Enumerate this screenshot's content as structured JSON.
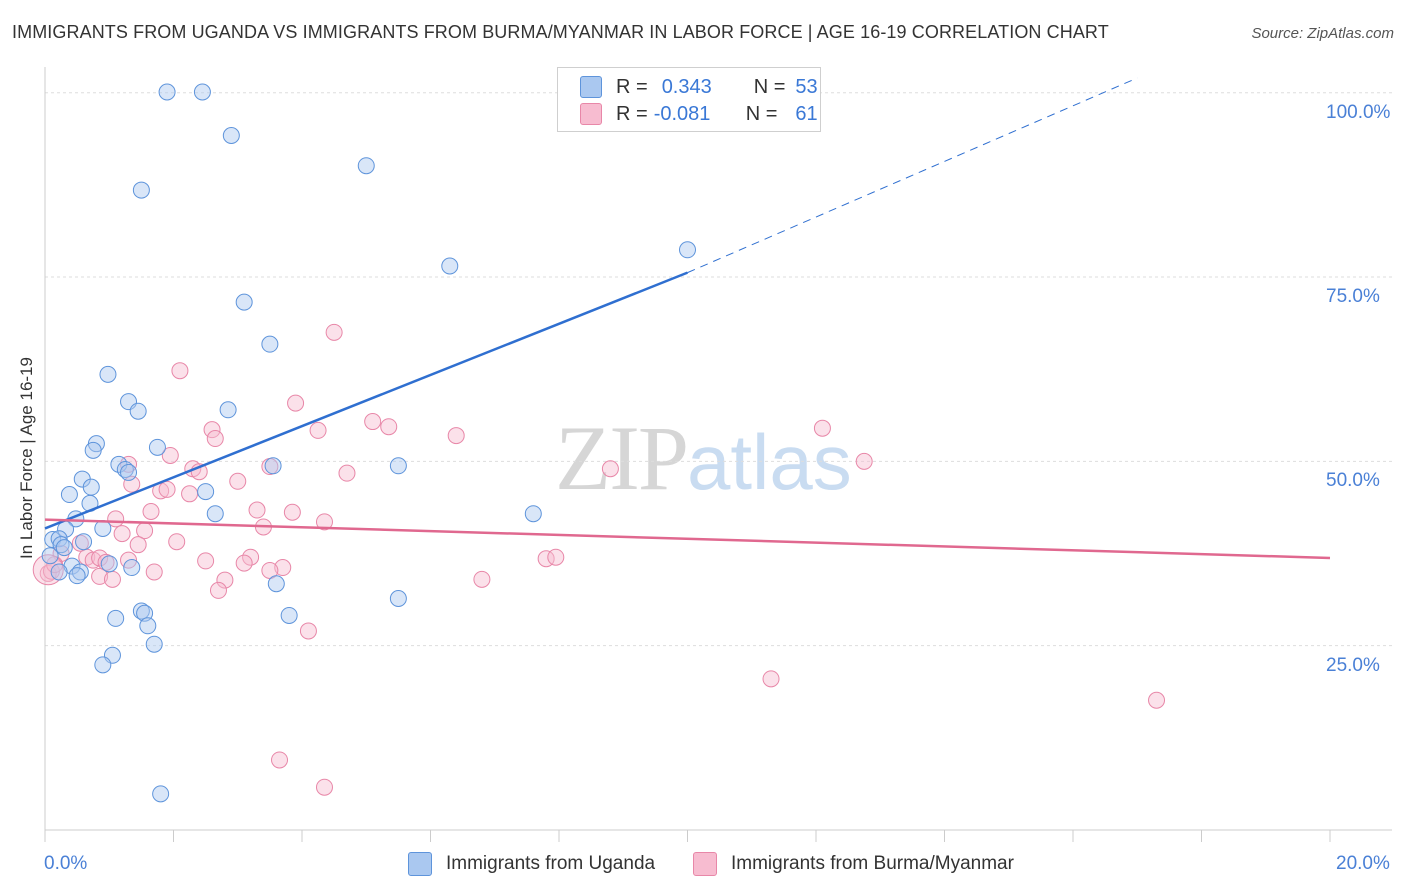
{
  "header": {
    "title": "IMMIGRANTS FROM UGANDA VS IMMIGRANTS FROM BURMA/MYANMAR IN LABOR FORCE | AGE 16-19 CORRELATION CHART",
    "source": "Source: ZipAtlas.com"
  },
  "watermark": {
    "zip": "ZIP",
    "atlas": "atlas"
  },
  "legend": {
    "rows": [
      {
        "r_label": "R =",
        "r_value": "0.343",
        "n_label": "N =",
        "n_value": "53",
        "color": "#aac8f0"
      },
      {
        "r_label": "R =",
        "r_value": "-0.081",
        "n_label": "N =",
        "n_value": "61",
        "color": "#f7bcd0"
      }
    ]
  },
  "colors": {
    "blue_fill": "#aac8f0",
    "blue_stroke": "#5e94db",
    "blue_line": "#2f6fd0",
    "pink_fill": "#f7bcd0",
    "pink_stroke": "#e887a8",
    "pink_line": "#e0688f",
    "tick_text": "#4a80d6",
    "grid": "#dddddd"
  },
  "chart_data": {
    "type": "scatter",
    "title": "IMMIGRANTS FROM UGANDA VS IMMIGRANTS FROM BURMA/MYANMAR IN LABOR FORCE | AGE 16-19 CORRELATION CHART",
    "xlabel": "",
    "ylabel": "In Labor Force | Age 16-19",
    "xlim": [
      0,
      20
    ],
    "ylim": [
      0,
      102
    ],
    "x_tick_labels": [
      "0.0%",
      "20.0%"
    ],
    "y_ticks": [
      25,
      50,
      75,
      100
    ],
    "y_tick_labels": [
      "25.0%",
      "50.0%",
      "75.0%",
      "100.0%"
    ],
    "grid": true,
    "legend_position": "top-center",
    "series": [
      {
        "name": "Immigrants from Uganda",
        "color": "#aac8f0",
        "trend": {
          "x_start": 0,
          "y_start": 40.9,
          "x_solid_end": 10.0,
          "y_solid_end": 75.6,
          "x_dash_end": 17.0,
          "y_dash_end": 102
        },
        "points": [
          [
            1.9,
            100.1
          ],
          [
            2.45,
            100.1
          ],
          [
            2.9,
            94.2
          ],
          [
            1.5,
            86.8
          ],
          [
            5.0,
            90.1
          ],
          [
            10.0,
            78.7
          ],
          [
            6.3,
            76.5
          ],
          [
            3.1,
            71.6
          ],
          [
            3.5,
            65.9
          ],
          [
            0.98,
            61.8
          ],
          [
            1.3,
            58.1
          ],
          [
            1.45,
            56.8
          ],
          [
            2.85,
            57.0
          ],
          [
            0.8,
            52.4
          ],
          [
            0.75,
            51.5
          ],
          [
            1.75,
            51.9
          ],
          [
            1.15,
            49.6
          ],
          [
            1.25,
            48.9
          ],
          [
            1.3,
            48.5
          ],
          [
            3.55,
            49.4
          ],
          [
            5.5,
            49.4
          ],
          [
            0.58,
            47.6
          ],
          [
            0.72,
            46.5
          ],
          [
            2.5,
            45.9
          ],
          [
            0.38,
            45.5
          ],
          [
            0.7,
            44.3
          ],
          [
            2.65,
            42.9
          ],
          [
            7.6,
            42.9
          ],
          [
            0.48,
            42.2
          ],
          [
            0.32,
            40.8
          ],
          [
            0.9,
            40.9
          ],
          [
            0.12,
            39.4
          ],
          [
            0.22,
            39.5
          ],
          [
            0.6,
            39.1
          ],
          [
            0.25,
            38.7
          ],
          [
            0.3,
            38.3
          ],
          [
            0.08,
            37.2
          ],
          [
            0.42,
            35.8
          ],
          [
            1.0,
            36.1
          ],
          [
            0.55,
            35.0
          ],
          [
            1.35,
            35.6
          ],
          [
            0.5,
            34.5
          ],
          [
            0.22,
            35.0
          ],
          [
            3.6,
            33.4
          ],
          [
            5.5,
            31.4
          ],
          [
            1.5,
            29.7
          ],
          [
            1.55,
            29.4
          ],
          [
            1.1,
            28.7
          ],
          [
            3.8,
            29.1
          ],
          [
            1.6,
            27.7
          ],
          [
            1.7,
            25.2
          ],
          [
            1.05,
            23.7
          ],
          [
            0.9,
            22.4
          ],
          [
            1.8,
            4.9
          ]
        ]
      },
      {
        "name": "Immigrants from Burma/Myanmar",
        "color": "#f7bcd0",
        "trend": {
          "x_start": 0,
          "y_start": 42.1,
          "x_end": 20,
          "y_end": 36.9
        },
        "points": [
          [
            4.5,
            67.5
          ],
          [
            2.1,
            62.3
          ],
          [
            3.9,
            57.9
          ],
          [
            5.1,
            55.4
          ],
          [
            5.35,
            54.7
          ],
          [
            2.6,
            54.3
          ],
          [
            4.25,
            54.2
          ],
          [
            6.4,
            53.5
          ],
          [
            2.65,
            53.1
          ],
          [
            12.1,
            54.5
          ],
          [
            12.75,
            50.0
          ],
          [
            1.95,
            50.8
          ],
          [
            3.5,
            49.3
          ],
          [
            2.3,
            49.0
          ],
          [
            1.3,
            49.6
          ],
          [
            2.4,
            48.6
          ],
          [
            4.7,
            48.4
          ],
          [
            8.8,
            49.0
          ],
          [
            3.0,
            47.3
          ],
          [
            1.35,
            46.9
          ],
          [
            1.8,
            46.0
          ],
          [
            1.9,
            46.2
          ],
          [
            2.25,
            45.6
          ],
          [
            3.3,
            43.4
          ],
          [
            3.85,
            43.1
          ],
          [
            1.65,
            43.2
          ],
          [
            4.35,
            41.8
          ],
          [
            1.1,
            42.2
          ],
          [
            3.4,
            41.1
          ],
          [
            1.55,
            40.6
          ],
          [
            1.2,
            40.2
          ],
          [
            0.55,
            38.9
          ],
          [
            1.45,
            38.7
          ],
          [
            2.05,
            39.1
          ],
          [
            0.25,
            37.5
          ],
          [
            0.65,
            37.0
          ],
          [
            0.75,
            36.6
          ],
          [
            0.85,
            36.9
          ],
          [
            0.95,
            36.3
          ],
          [
            1.3,
            36.6
          ],
          [
            2.5,
            36.5
          ],
          [
            3.2,
            37.0
          ],
          [
            3.1,
            36.2
          ],
          [
            7.8,
            36.8
          ],
          [
            7.95,
            37.0
          ],
          [
            3.7,
            35.6
          ],
          [
            3.5,
            35.2
          ],
          [
            1.7,
            35.0
          ],
          [
            0.85,
            34.4
          ],
          [
            1.05,
            34.0
          ],
          [
            6.8,
            34.0
          ],
          [
            2.8,
            33.9
          ],
          [
            2.7,
            32.5
          ],
          [
            4.1,
            27.0
          ],
          [
            11.3,
            20.5
          ],
          [
            17.3,
            17.6
          ],
          [
            3.65,
            9.5
          ],
          [
            4.35,
            5.8
          ],
          [
            0.05,
            34.8
          ],
          [
            0.1,
            35.1
          ],
          [
            0.15,
            36.0
          ]
        ]
      }
    ]
  }
}
